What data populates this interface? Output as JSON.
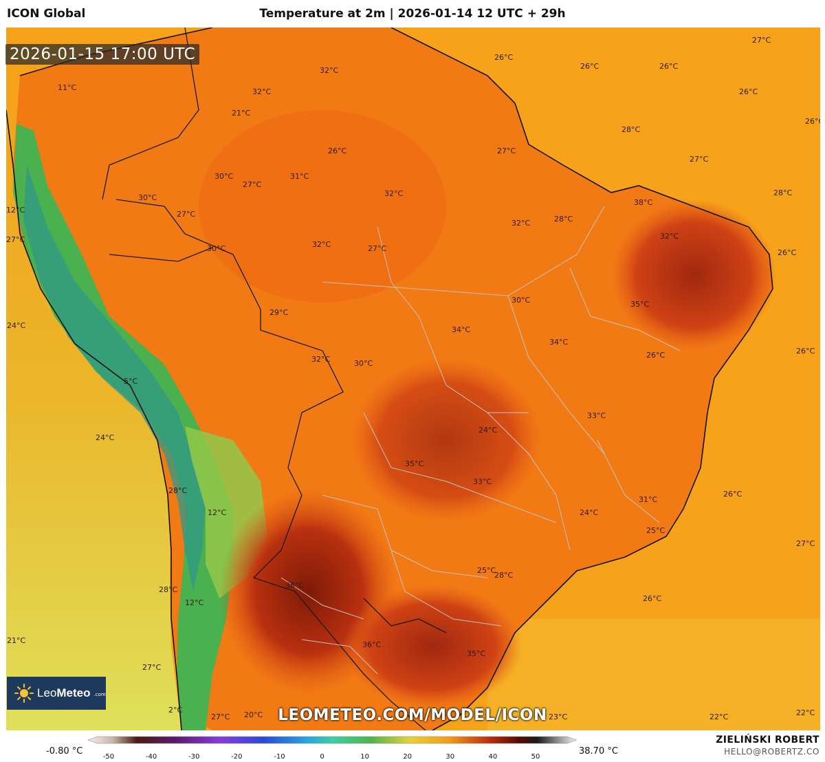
{
  "header": {
    "model": "ICON Global",
    "title": "Temperature at 2m | 2026-01-14 12 UTC + 29h"
  },
  "valid_time": "2026-01-15 17:00 UTC",
  "logo": {
    "brand_light": "Leo",
    "brand_bold": "Meteo",
    "suffix": ".com"
  },
  "watermark": "LEOMETEO.COM/MODEL/ICON",
  "footer": {
    "scale_min": "-0.80 °C",
    "scale_max": "38.70 °C",
    "author": "ZIELIŃSKI ROBERT",
    "contact": "HELLO@ROBERTZ.CO",
    "ticks": [
      "-50",
      "-40",
      "-30",
      "-20",
      "-10",
      "0",
      "10",
      "20",
      "30",
      "40",
      "50"
    ]
  },
  "colors": {
    "ocean_warm": "#f7a21b",
    "land_hot": "#f06c14",
    "land_very_hot": "#a8260e",
    "andes": "#3aa84a",
    "pacific": "#e8c246"
  },
  "temperature_labels": [
    "27°C",
    "26°C",
    "26°C",
    "26°C",
    "26°C",
    "32°C",
    "32°C",
    "11°C",
    "21°C",
    "28°C",
    "26°C",
    "27°C",
    "27°C",
    "26°C",
    "30°C",
    "27°C",
    "31°C",
    "32°C",
    "28°C",
    "12°C",
    "30°C",
    "27°C",
    "38°C",
    "32°C",
    "28°C",
    "32°C",
    "27°C",
    "30°C",
    "32°C",
    "27°C",
    "26°C",
    "35°C",
    "30°C",
    "29°C",
    "34°C",
    "34°C",
    "26°C",
    "32°C",
    "30°C",
    "26°C",
    "5°C",
    "33°C",
    "24°C",
    "24°C",
    "35°C",
    "33°C",
    "26°C",
    "28°C",
    "12°C",
    "31°C",
    "24°C",
    "25°C",
    "27°C",
    "25°C",
    "28°C",
    "38°C",
    "26°C",
    "28°C",
    "12°C",
    "21°C",
    "36°C",
    "35°C",
    "27°C",
    "2°C",
    "27°C",
    "20°C",
    "23°C",
    "22°C",
    "22°C",
    "24°C"
  ]
}
